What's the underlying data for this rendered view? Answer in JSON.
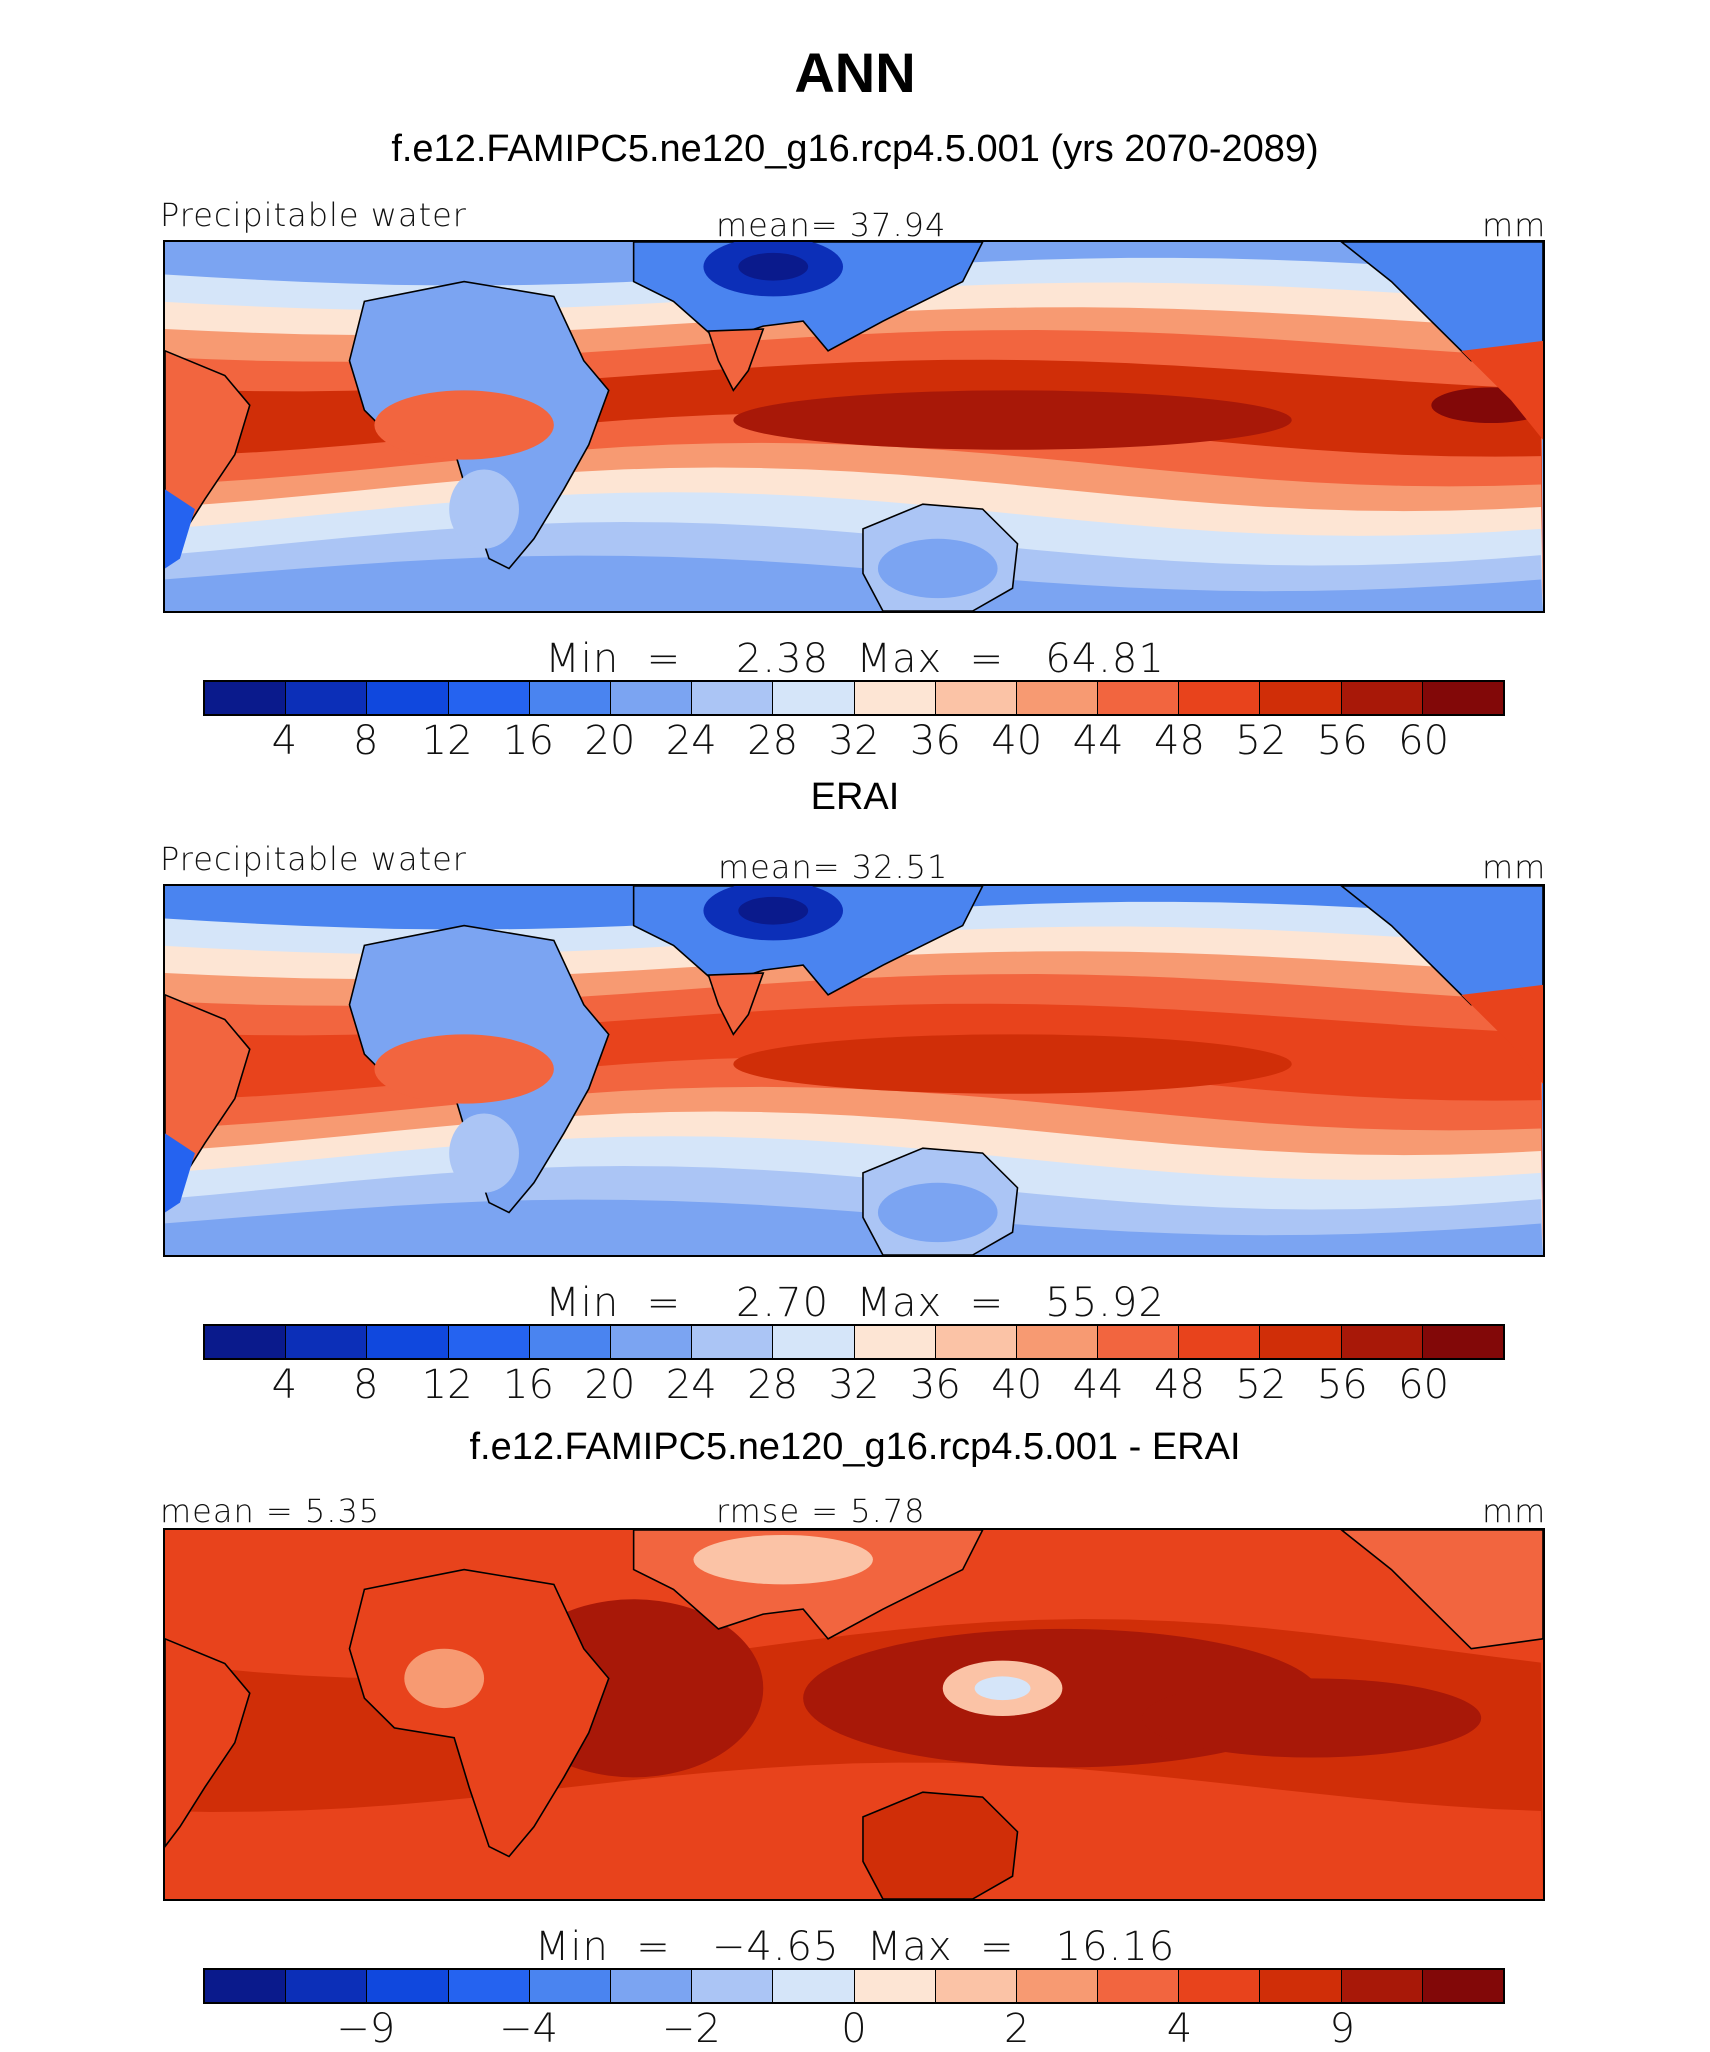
{
  "figure": {
    "title": "ANN"
  },
  "panels": [
    {
      "title": "f.e12.FAMIPC5.ne120_g16.rcp4.5.001 (yrs 2070-2089)",
      "left_label": "Precipitable water",
      "center_label": "mean=   37.94",
      "units": "mm",
      "minmax": "Min  =    2.38  Max  =   64.81",
      "field_variant": "model"
    },
    {
      "title": "ERAI",
      "left_label": "Precipitable water",
      "center_label": "mean=   32.51",
      "units": "mm",
      "minmax": "Min  =    2.70  Max  =   55.92",
      "field_variant": "obs"
    },
    {
      "title": "f.e12.FAMIPC5.ne120_g16.rcp4.5.001 - ERAI",
      "left_label": "mean =    5.35",
      "center_label": "rmse =    5.78",
      "units": "mm",
      "minmax": "Min  =   −4.65  Max  =   16.16",
      "field_variant": "diff"
    }
  ],
  "colorbars": {
    "abs_ticks": [
      "4",
      "8",
      "12",
      "16",
      "20",
      "24",
      "28",
      "32",
      "36",
      "40",
      "44",
      "48",
      "52",
      "56",
      "60"
    ],
    "diff_ticks": [
      "−9",
      "−4",
      "−2",
      "0",
      "2",
      "4",
      "9"
    ],
    "colors": [
      "#0a1a8c",
      "#0c2fb8",
      "#1048de",
      "#2563f0",
      "#4a84f0",
      "#7ba4f2",
      "#abc5f5",
      "#d5e5f9",
      "#fde5d4",
      "#fbc3a6",
      "#f79a72",
      "#f2653f",
      "#e8431c",
      "#d02e08",
      "#a81808",
      "#820808"
    ]
  },
  "chart_data": {
    "type": "heatmap",
    "title": "ANN",
    "variable": "Precipitable water",
    "units": "mm",
    "panels": [
      {
        "name": "f.e12.FAMIPC5.ne120_g16.rcp4.5.001 (yrs 2070-2089)",
        "mean": 37.94,
        "min": 2.38,
        "max": 64.81
      },
      {
        "name": "ERAI",
        "mean": 32.51,
        "min": 2.7,
        "max": 55.92
      },
      {
        "name": "f.e12.FAMIPC5.ne120_g16.rcp4.5.001 - ERAI",
        "mean": 5.35,
        "rmse": 5.78,
        "min": -4.65,
        "max": 16.16
      }
    ],
    "abs_levels": [
      4,
      8,
      12,
      16,
      20,
      24,
      28,
      32,
      36,
      40,
      44,
      48,
      52,
      56,
      60
    ],
    "diff_levels": [
      -9,
      -4,
      -2,
      0,
      2,
      4,
      9
    ]
  }
}
